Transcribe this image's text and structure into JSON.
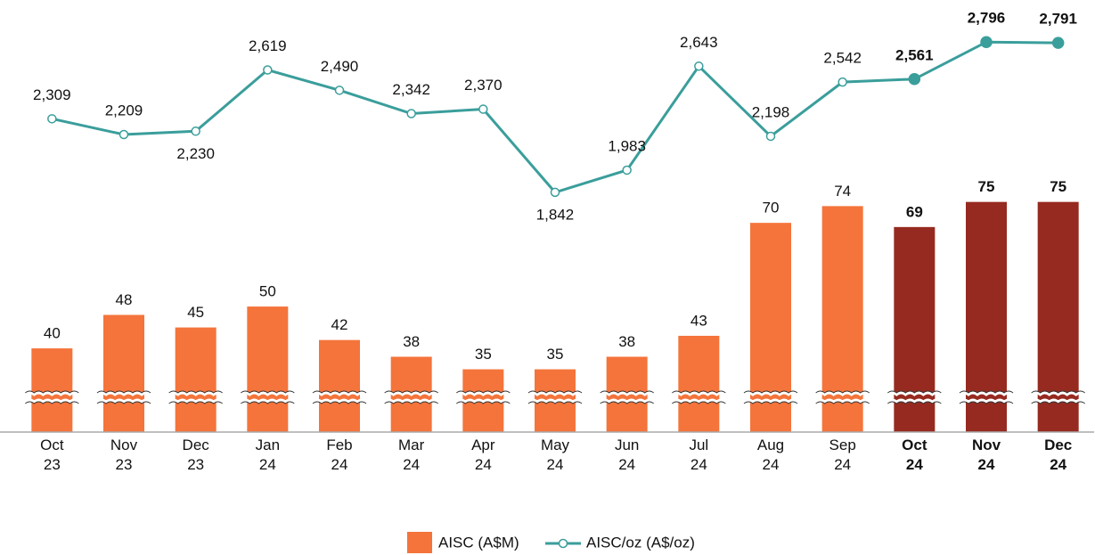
{
  "chart_data": {
    "type": "bar-line",
    "categories": [
      "Oct 23",
      "Nov 23",
      "Dec 23",
      "Jan 24",
      "Feb 24",
      "Mar 24",
      "Apr 24",
      "May 24",
      "Jun 24",
      "Jul 24",
      "Aug 24",
      "Sep 24",
      "Oct 24",
      "Nov 24",
      "Dec 24"
    ],
    "highlighted": [
      false,
      false,
      false,
      false,
      false,
      false,
      false,
      false,
      false,
      false,
      false,
      false,
      true,
      true,
      true
    ],
    "series": [
      {
        "name": "AISC (A$M)",
        "type": "bar",
        "color": "#f4743b",
        "highlight_color": "#962a20",
        "values": [
          40,
          48,
          45,
          50,
          42,
          38,
          35,
          35,
          38,
          43,
          70,
          74,
          69,
          75,
          75
        ]
      },
      {
        "name": "AISC/oz (A$/oz)",
        "type": "line",
        "axis": "y2",
        "color": "#3a9e9b",
        "values": [
          2309,
          2209,
          2230,
          2619,
          2490,
          2342,
          2370,
          1842,
          1983,
          2643,
          2198,
          2542,
          2561,
          2796,
          2791
        ],
        "value_labels": [
          "2,309",
          "2,209",
          "2,230",
          "2,619",
          "2,490",
          "2,342",
          "2,370",
          "1,842",
          "1,983",
          "2,643",
          "2,198",
          "2,542",
          "2,561",
          "2,796",
          "2,791"
        ]
      }
    ],
    "ylim": [
      20,
      119
    ],
    "y2lim": [
      320,
      2950
    ],
    "axis_break": true,
    "grid": false
  }
}
